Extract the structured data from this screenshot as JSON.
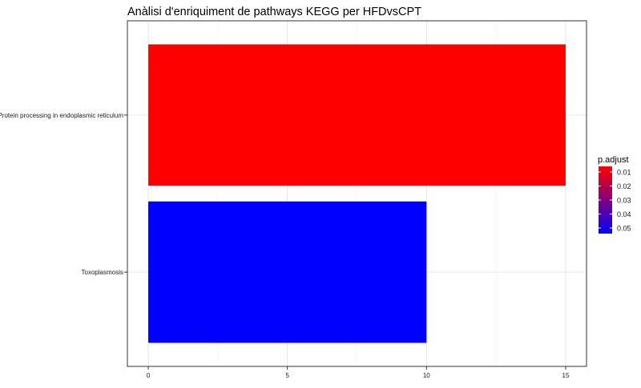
{
  "chart_data": {
    "type": "bar",
    "orientation": "horizontal",
    "title": "Anàlisi d'enriquiment de pathways KEGG per HFDvsCPT",
    "xlabel": "",
    "ylabel": "",
    "categories": [
      "Protein processing in endoplasmic reticulum",
      "Toxoplasmosis"
    ],
    "values": [
      15,
      10
    ],
    "bar_colors": [
      "#ff0000",
      "#0000ff"
    ],
    "xlim": [
      -0.75,
      15.75
    ],
    "xticks": [
      0,
      5,
      10,
      15
    ],
    "grid": true,
    "legend": {
      "title": "p.adjust",
      "placement": "right",
      "type": "colorbar",
      "ticks": [
        "0.01",
        "0.02",
        "0.03",
        "0.04",
        "0.05"
      ],
      "gradient_colors": [
        "#ff0000",
        "#0000ff"
      ]
    }
  }
}
